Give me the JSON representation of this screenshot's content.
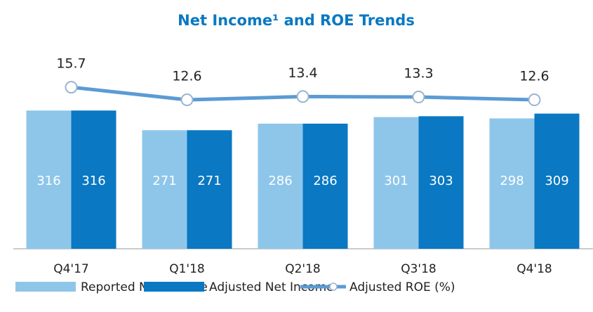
{
  "chart_data": {
    "type": "bar",
    "title": "Net Income¹ and ROE Trends",
    "categories": [
      "Q4'17",
      "Q1'18",
      "Q2'18",
      "Q3'18",
      "Q4'18"
    ],
    "series": [
      {
        "name": "Reported Net Income",
        "color": "#8ec6ea",
        "values": [
          316,
          271,
          286,
          301,
          298
        ]
      },
      {
        "name": "Adjusted Net Income",
        "color": "#0a78c2",
        "values": [
          316,
          271,
          286,
          303,
          309
        ]
      },
      {
        "name": "Adjusted ROE (%)",
        "color": "#5b9bd5",
        "type": "line",
        "axis": "y2",
        "values": [
          15.7,
          12.6,
          13.4,
          13.3,
          12.6
        ]
      }
    ],
    "ylim": [
      0,
      400
    ],
    "y2lim": [
      -24,
      19
    ],
    "legend": "bottom"
  }
}
